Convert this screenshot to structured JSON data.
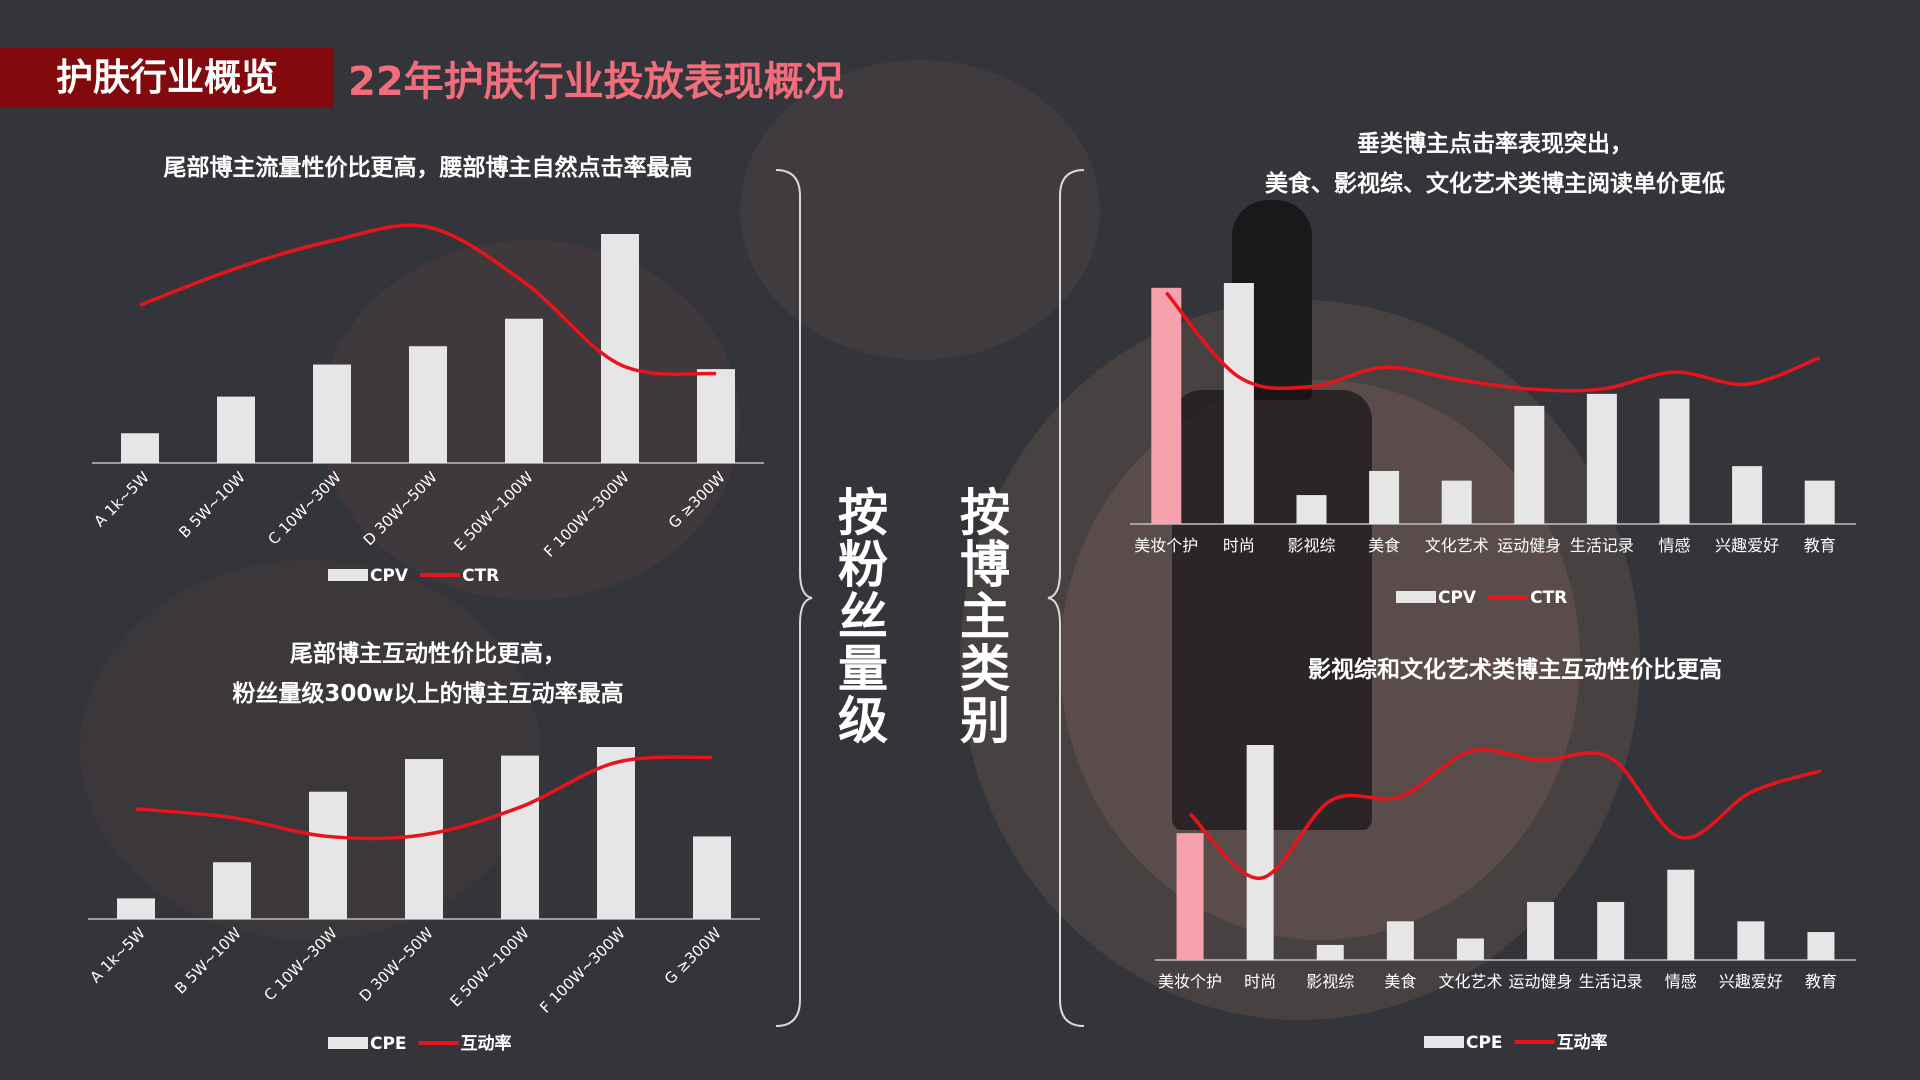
{
  "header": {
    "tag": "护肤行业概览",
    "title": "22年护肤行业投放表现概况"
  },
  "colors": {
    "background": "#34353a",
    "header_tag_bg": "#820a0d",
    "header_title": "#f26d7b",
    "bar": "#e6e6e6",
    "bar_highlight": "#f6a1ac",
    "line": "#e8141b"
  },
  "vertical_labels": {
    "left": "按粉丝量级",
    "right": "按博主类别"
  },
  "headings": {
    "tl": [
      "尾部博主流量性价比更高，腰部博主自然点击率最高"
    ],
    "bl": [
      "尾部博主互动性价比更高，",
      "粉丝量级300w以上的博主互动率最高"
    ],
    "tr": [
      "垂类博主点击率表现突出，",
      "美食、影视综、文化艺术类博主阅读单价更低"
    ],
    "br": [
      "影视综和文化艺术类博主互动性价比更高"
    ]
  },
  "chart_data": [
    {
      "type": "bar",
      "title": "尾部博主流量性价比更高，腰部博主自然点击率最高",
      "categories": [
        "A 1k~5W",
        "B 5W~10W",
        "C 10W~30W",
        "D 30W~50W",
        "E 50W~100W",
        "F 100W~300W",
        "G ≥300W"
      ],
      "series": [
        {
          "name": "CPV",
          "kind": "bar",
          "values": [
            13,
            29,
            43,
            51,
            63,
            100,
            41
          ]
        },
        {
          "name": "CTR",
          "kind": "line",
          "values": [
            69,
            85,
            97,
            103,
            79,
            43,
            39
          ]
        }
      ],
      "ylim": [
        0,
        110
      ],
      "legend": "bottom-center",
      "grid": false
    },
    {
      "type": "bar",
      "title": "尾部博主互动性价比更高，粉丝量级300w以上的博主互动率最高",
      "categories": [
        "A 1k~5W",
        "B 5W~10W",
        "C 10W~30W",
        "D 30W~50W",
        "E 50W~100W",
        "F 100W~300W",
        "G ≥300W"
      ],
      "series": [
        {
          "name": "CPE",
          "kind": "bar",
          "values": [
            12,
            33,
            74,
            93,
            95,
            100,
            48
          ]
        },
        {
          "name": "互动率",
          "kind": "line",
          "values": [
            64,
            59,
            48,
            49,
            65,
            91,
            94
          ]
        }
      ],
      "ylim": [
        0,
        110
      ],
      "legend": "bottom-center",
      "grid": false
    },
    {
      "type": "bar",
      "title": "垂类博主点击率表现突出，美食、影视综、文化艺术类博主阅读单价更低",
      "categories": [
        "美妆个护",
        "时尚",
        "影视综",
        "美食",
        "文化艺术",
        "运动健身",
        "生活记录",
        "情感",
        "兴趣爱好",
        "教育"
      ],
      "series": [
        {
          "name": "CPV",
          "kind": "bar",
          "values": [
            98,
            100,
            12,
            22,
            18,
            49,
            54,
            52,
            24,
            18
          ],
          "highlight_index": 0
        },
        {
          "name": "CTR",
          "kind": "line",
          "values": [
            96,
            61,
            57,
            65,
            60,
            56,
            56,
            63,
            58,
            69
          ]
        }
      ],
      "ylim": [
        0,
        110
      ],
      "legend": "bottom-center",
      "grid": false
    },
    {
      "type": "bar",
      "title": "影视综和文化艺术类博主互动性价比更高",
      "categories": [
        "美妆个护",
        "时尚",
        "影视综",
        "美食",
        "文化艺术",
        "运动健身",
        "生活记录",
        "情感",
        "兴趣爱好",
        "教育"
      ],
      "series": [
        {
          "name": "CPE",
          "kind": "bar",
          "values": [
            59,
            100,
            7,
            18,
            10,
            27,
            27,
            42,
            18,
            13
          ],
          "highlight_index": 0
        },
        {
          "name": "互动率",
          "kind": "line",
          "values": [
            68,
            38,
            74,
            76,
            97,
            93,
            94,
            57,
            78,
            88
          ]
        }
      ],
      "ylim": [
        0,
        110
      ],
      "legend": "bottom-center",
      "grid": false
    }
  ]
}
